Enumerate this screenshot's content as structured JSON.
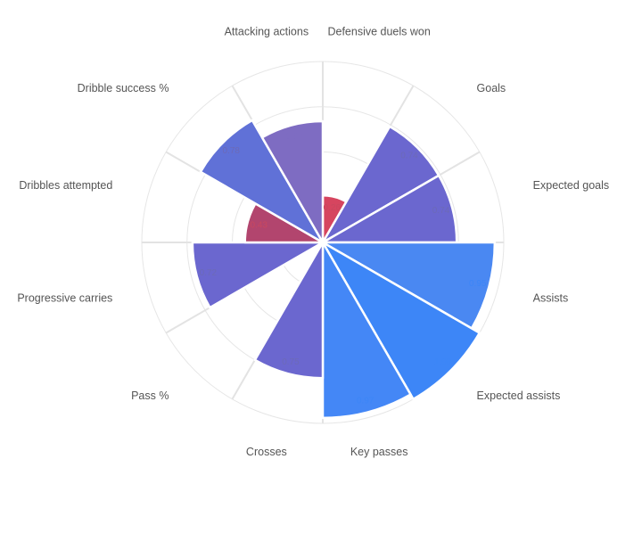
{
  "chart_data": {
    "type": "polar-bar",
    "categories": [
      "Defensive duels won",
      "Goals",
      "Expected goals",
      "Assists",
      "Expected assists",
      "Key passes",
      "Crosses",
      "Pass %",
      "Progressive carries",
      "Dribbles attempted",
      "Dribble success %",
      "Attacking actions"
    ],
    "values": [
      0.26,
      0.74,
      0.74,
      0.95,
      1.0,
      0.97,
      0.75,
      0.0,
      0.72,
      0.43,
      0.78,
      0.67
    ],
    "value_labels": [
      "0.26",
      "0.74",
      "0.74",
      "0.95",
      "1.00",
      "0.97",
      "0.75",
      "",
      "0.72",
      "0.43",
      "0.78",
      "0.67"
    ],
    "colors": [
      "#d6455f",
      "#6b67cf",
      "#6b67cf",
      "#4a88f2",
      "#3d86f7",
      "#4487f6",
      "#6b67cf",
      "#d6455f",
      "#6b67cf",
      "#b2456e",
      "#6071d7",
      "#7e6cc2"
    ],
    "label_colors": [
      "#c9475f",
      "#6c6ab8",
      "#6c6ab8",
      "#3d86f7",
      "#3d86f7",
      "#3d86f7",
      "#6c6ab8",
      "#c9475f",
      "#6c6ab8",
      "#c9475f",
      "#6c6ab8",
      "#7e6cc2"
    ],
    "rlim": [
      0,
      1
    ],
    "grid": true
  }
}
